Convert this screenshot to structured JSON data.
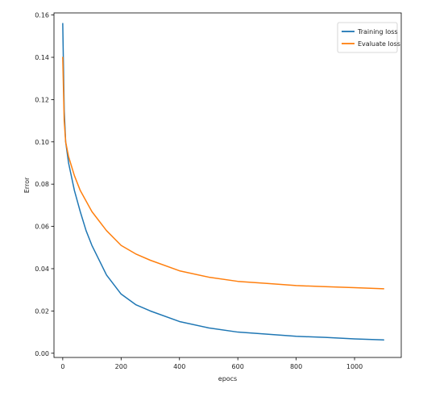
{
  "chart_data": {
    "type": "line",
    "title": "",
    "xlabel": "epocs",
    "ylabel": "Error",
    "xlim": [
      -30,
      1160
    ],
    "ylim": [
      -0.002,
      0.161
    ],
    "xticks": [
      0,
      200,
      400,
      600,
      800,
      1000
    ],
    "yticks": [
      0.0,
      0.02,
      0.04,
      0.06,
      0.08,
      0.1,
      0.12,
      0.14,
      0.16
    ],
    "ytick_labels": [
      "0.00",
      "0.02",
      "0.04",
      "0.06",
      "0.08",
      "0.10",
      "0.12",
      "0.14",
      "0.16"
    ],
    "grid": false,
    "legend": "top-right",
    "series": [
      {
        "name": "Training loss",
        "color": "#1f77b4",
        "x": [
          0,
          5,
          10,
          20,
          40,
          60,
          80,
          100,
          150,
          200,
          250,
          300,
          400,
          500,
          600,
          700,
          800,
          900,
          1000,
          1100
        ],
        "y": [
          0.156,
          0.115,
          0.1,
          0.09,
          0.077,
          0.067,
          0.058,
          0.051,
          0.037,
          0.028,
          0.023,
          0.02,
          0.015,
          0.012,
          0.01,
          0.009,
          0.008,
          0.0075,
          0.0068,
          0.0063
        ]
      },
      {
        "name": "Evaluate loss",
        "color": "#ff7f0e",
        "x": [
          0,
          5,
          10,
          20,
          40,
          60,
          80,
          100,
          150,
          200,
          250,
          300,
          400,
          500,
          600,
          700,
          800,
          900,
          1000,
          1100
        ],
        "y": [
          0.14,
          0.11,
          0.1,
          0.093,
          0.084,
          0.077,
          0.072,
          0.067,
          0.058,
          0.051,
          0.047,
          0.044,
          0.039,
          0.036,
          0.034,
          0.033,
          0.032,
          0.0315,
          0.031,
          0.0305
        ]
      }
    ]
  }
}
